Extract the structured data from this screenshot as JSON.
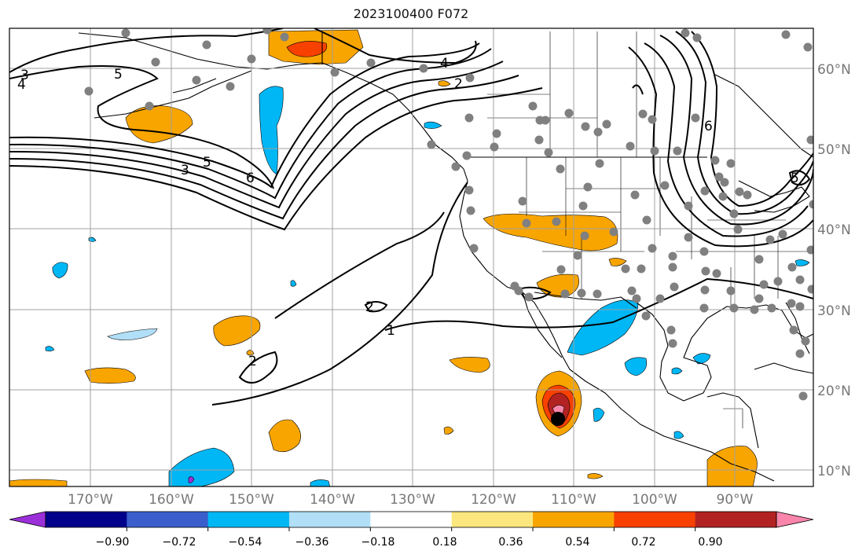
{
  "title": "2023100400 F072",
  "map": {
    "lat_labels": [
      "60°N",
      "50°N",
      "40°N",
      "30°N",
      "20°N",
      "10°N"
    ],
    "lon_labels": [
      "170°W",
      "160°W",
      "150°W",
      "140°W",
      "130°W",
      "120°W",
      "110°W",
      "100°W",
      "90°W"
    ],
    "contour_labels": [
      "3",
      "4",
      "5",
      "4",
      "2",
      "5",
      "3",
      "6",
      "6",
      "2",
      "2",
      "1",
      "5"
    ],
    "gridline_color": "#a0a0a0",
    "land_outline_color": "#000000",
    "station_dot_color": "#808080",
    "storm_center_color": "#000000"
  },
  "colorbar": {
    "tick_labels": [
      "−0.90",
      "−0.72",
      "−0.54",
      "−0.36",
      "−0.18",
      "0.18",
      "0.36",
      "0.54",
      "0.72",
      "0.90"
    ],
    "colors": [
      "#9b30d9",
      "#00008b",
      "#3a5fcd",
      "#00b7f5",
      "#b0dff7",
      "#ffffff",
      "#fbe77e",
      "#f9a500",
      "#f84000",
      "#b22222",
      "#f985ab"
    ],
    "extend": "both"
  }
}
